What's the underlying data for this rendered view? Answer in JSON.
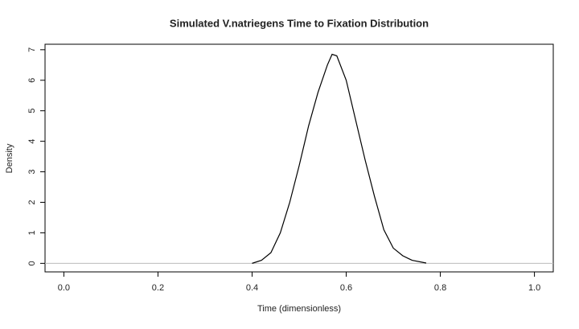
{
  "chart_data": {
    "type": "line",
    "title": "Simulated V.natriegens Time to Fixation Distribution",
    "xlabel": "Time (dimensionless)",
    "ylabel": "Density",
    "x": [
      0.4,
      0.42,
      0.44,
      0.46,
      0.48,
      0.5,
      0.52,
      0.54,
      0.56,
      0.57,
      0.58,
      0.6,
      0.62,
      0.64,
      0.66,
      0.68,
      0.7,
      0.72,
      0.74,
      0.77
    ],
    "series": [
      {
        "color": "#000000",
        "values": [
          0.0,
          0.1,
          0.35,
          1.0,
          2.0,
          3.2,
          4.5,
          5.6,
          6.5,
          6.85,
          6.8,
          6.0,
          4.7,
          3.4,
          2.2,
          1.1,
          0.5,
          0.25,
          0.1,
          0.01
        ]
      }
    ],
    "hline": {
      "value": 0,
      "color": "#bbbbbb"
    },
    "xlim": [
      -0.04,
      1.04
    ],
    "xticks": [
      {
        "value": 0,
        "label": "0.0"
      },
      0.2,
      0.4,
      0.6,
      0.8,
      {
        "value": 1,
        "label": "1.0"
      }
    ],
    "ylim": [
      -0.28,
      7.18
    ],
    "yticks": [
      0,
      1,
      2,
      3,
      4,
      5,
      6,
      7
    ]
  }
}
